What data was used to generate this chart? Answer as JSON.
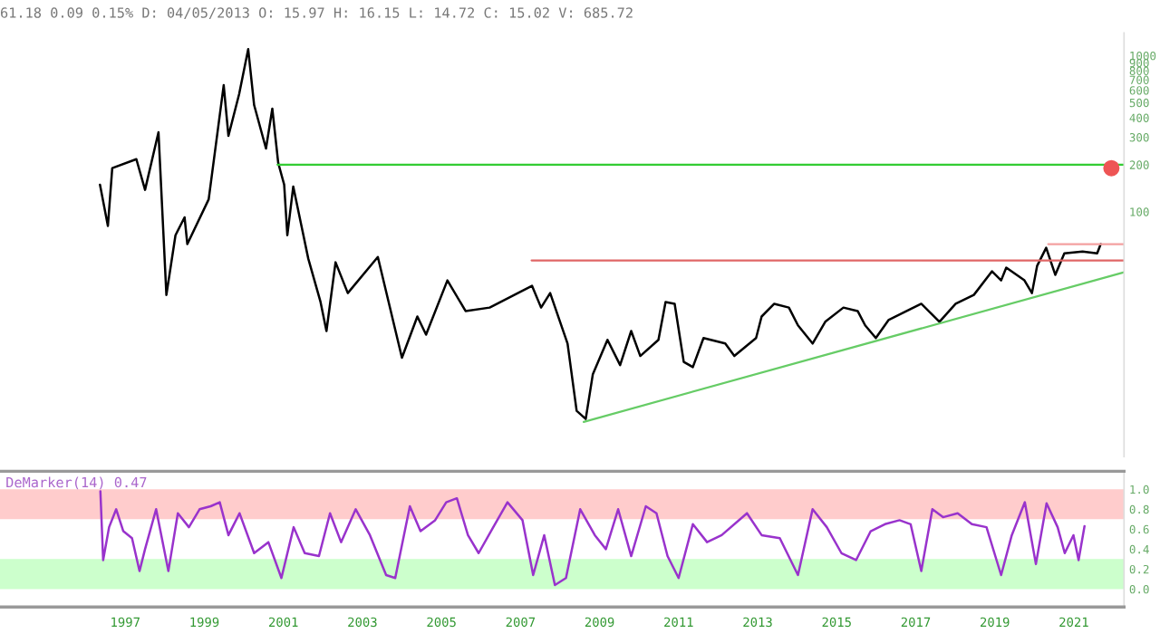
{
  "chart_data": [
    {
      "type": "line",
      "title": "61.18 0.09 0.15% D: 04/05/2013 O: 15.97 H: 16.15 L: 14.72 C: 15.02 V: 685.72",
      "log": true,
      "grid": false,
      "tick_labels": "y",
      "xlim": [
        1993.83,
        2022.27
      ],
      "ylim": [
        2.7,
        1400
      ],
      "yticks": [
        100,
        200,
        300,
        400,
        500,
        600,
        700,
        800,
        900,
        1000
      ],
      "series": [
        {
          "color": "#000000",
          "x": [
            1996.36,
            1996.56,
            1996.67,
            1997.28,
            1997.5,
            1997.84,
            1998.04,
            1998.27,
            1998.5,
            1998.57,
            1999.11,
            1999.49,
            1999.61,
            1999.88,
            2000.11,
            2000.26,
            2000.56,
            2000.72,
            2000.87,
            2001.02,
            2001.1,
            2001.25,
            2001.63,
            2001.94,
            2002.09,
            2002.32,
            2002.63,
            2003.39,
            2004.0,
            2004.39,
            2004.61,
            2005.15,
            2005.61,
            2006.22,
            2007.29,
            2007.52,
            2007.75,
            2008.19,
            2008.42,
            2008.65,
            2008.83,
            2009.2,
            2009.52,
            2009.8,
            2010.03,
            2010.49,
            2010.67,
            2010.9,
            2011.13,
            2011.36,
            2011.63,
            2012.18,
            2012.41,
            2012.96,
            2013.1,
            2013.42,
            2013.79,
            2014.02,
            2014.39,
            2014.71,
            2015.17,
            2015.53,
            2015.72,
            2015.99,
            2016.31,
            2016.77,
            2017.14,
            2017.6,
            2018.01,
            2018.47,
            2018.93,
            2019.16,
            2019.29,
            2019.75,
            2019.94,
            2020.07,
            2020.3,
            2020.53,
            2020.76,
            2021.22,
            2021.59,
            2021.68
          ],
          "values": [
            149,
            81,
            190,
            217,
            138,
            323,
            29.3,
            70.7,
            92,
            62,
            120,
            646,
            306,
            566,
            1100,
            482,
            254,
            457,
            205,
            149,
            70.7,
            145,
            50,
            26.4,
            17.2,
            47.4,
            30.1,
            51.3,
            11.6,
            21.3,
            16.3,
            36.3,
            23.1,
            24.3,
            33.5,
            24.3,
            30.1,
            14.3,
            5.3,
            4.7,
            9.1,
            15.1,
            10.4,
            17.2,
            11.9,
            15.1,
            26.4,
            25.7,
            10.9,
            10.1,
            15.5,
            14.3,
            11.9,
            15.5,
            21.3,
            25.7,
            24.3,
            18.7,
            14.3,
            19.7,
            24.3,
            23.1,
            18.7,
            15.5,
            20.2,
            23.1,
            25.7,
            19.7,
            25.7,
            29.3,
            41.5,
            36.3,
            43.8,
            36.3,
            30.1,
            44.9,
            58.7,
            39.4,
            54.1,
            55.6,
            54.1,
            62
          ]
        },
        {
          "type": "line",
          "color": "#33cc33",
          "x": [
            2000.85,
            2022.27
          ],
          "values": [
            200,
            200
          ]
        },
        {
          "type": "line",
          "color": "#e06666",
          "x": [
            2007.28,
            2022.27
          ],
          "values": [
            48.7,
            48.7
          ]
        },
        {
          "type": "line",
          "color": "#f4a0a0",
          "x": [
            2020.35,
            2022.27
          ],
          "values": [
            62,
            62
          ]
        },
        {
          "type": "line",
          "color": "#66cc66",
          "x": [
            2008.6,
            2022.27
          ],
          "values": [
            4.5,
            40.9
          ]
        },
        {
          "type": "scatter",
          "color": "#ee5555",
          "marker": "circle",
          "x": [
            2021.95
          ],
          "values": [
            190
          ]
        }
      ]
    },
    {
      "type": "line",
      "title": "DeMarker(14) 0.47",
      "grid": false,
      "xlim": [
        1993.83,
        2022.27
      ],
      "ylim": [
        -0.18,
        1.18
      ],
      "xticks": [
        1997,
        1999,
        2001,
        2003,
        2005,
        2007,
        2009,
        2011,
        2013,
        2015,
        2017,
        2019,
        2021
      ],
      "yticks": [
        {
          "value": 0,
          "label": "0.0"
        },
        {
          "value": 0.2,
          "label": "0.2"
        },
        {
          "value": 0.4,
          "label": "0.4"
        },
        {
          "value": 0.6,
          "label": "0.6"
        },
        {
          "value": 0.8,
          "label": "0.8"
        },
        {
          "value": 1,
          "label": "1.0"
        }
      ],
      "bands": [
        {
          "axis": "y",
          "from": 0.7,
          "to": 1.0,
          "color": "#ffcccc"
        },
        {
          "axis": "y",
          "from": 0.0,
          "to": 0.3,
          "color": "#ccffcc"
        }
      ],
      "series": [
        {
          "color": "#9933cc",
          "x": [
            1996.37,
            1996.44,
            1996.59,
            1996.77,
            1996.95,
            1997.17,
            1997.36,
            1997.5,
            1997.78,
            1998.09,
            1998.33,
            1998.61,
            1998.88,
            1999.16,
            1999.39,
            1999.61,
            1999.89,
            2000.26,
            2000.62,
            2000.95,
            2001.26,
            2001.54,
            2001.9,
            2002.18,
            2002.46,
            2002.83,
            2003.19,
            2003.6,
            2003.83,
            2004.2,
            2004.47,
            2004.84,
            2005.12,
            2005.39,
            2005.67,
            2005.94,
            2006.31,
            2006.67,
            2007.05,
            2007.32,
            2007.6,
            2007.87,
            2008.15,
            2008.51,
            2008.88,
            2009.16,
            2009.47,
            2009.8,
            2010.17,
            2010.44,
            2010.72,
            2011.0,
            2011.36,
            2011.72,
            2012.09,
            2012.73,
            2013.1,
            2013.56,
            2014.02,
            2014.39,
            2014.75,
            2015.12,
            2015.49,
            2015.86,
            2016.22,
            2016.59,
            2016.87,
            2017.14,
            2017.42,
            2017.69,
            2018.06,
            2018.42,
            2018.79,
            2019.16,
            2019.43,
            2019.76,
            2020.04,
            2020.31,
            2020.59,
            2020.77,
            2020.99,
            2021.12,
            2021.27
          ],
          "values": [
            0.98,
            0.29,
            0.62,
            0.8,
            0.58,
            0.51,
            0.18,
            0.4,
            0.8,
            0.18,
            0.76,
            0.62,
            0.8,
            0.83,
            0.87,
            0.54,
            0.76,
            0.36,
            0.47,
            0.11,
            0.62,
            0.36,
            0.33,
            0.76,
            0.47,
            0.8,
            0.54,
            0.14,
            0.11,
            0.83,
            0.58,
            0.69,
            0.87,
            0.91,
            0.54,
            0.36,
            0.62,
            0.87,
            0.69,
            0.14,
            0.54,
            0.04,
            0.11,
            0.8,
            0.54,
            0.4,
            0.8,
            0.33,
            0.83,
            0.76,
            0.33,
            0.11,
            0.65,
            0.47,
            0.54,
            0.76,
            0.54,
            0.51,
            0.14,
            0.8,
            0.62,
            0.36,
            0.29,
            0.58,
            0.65,
            0.69,
            0.65,
            0.18,
            0.8,
            0.72,
            0.76,
            0.65,
            0.62,
            0.14,
            0.54,
            0.87,
            0.25,
            0.86,
            0.62,
            0.36,
            0.54,
            0.29,
            0.63
          ]
        }
      ]
    }
  ]
}
